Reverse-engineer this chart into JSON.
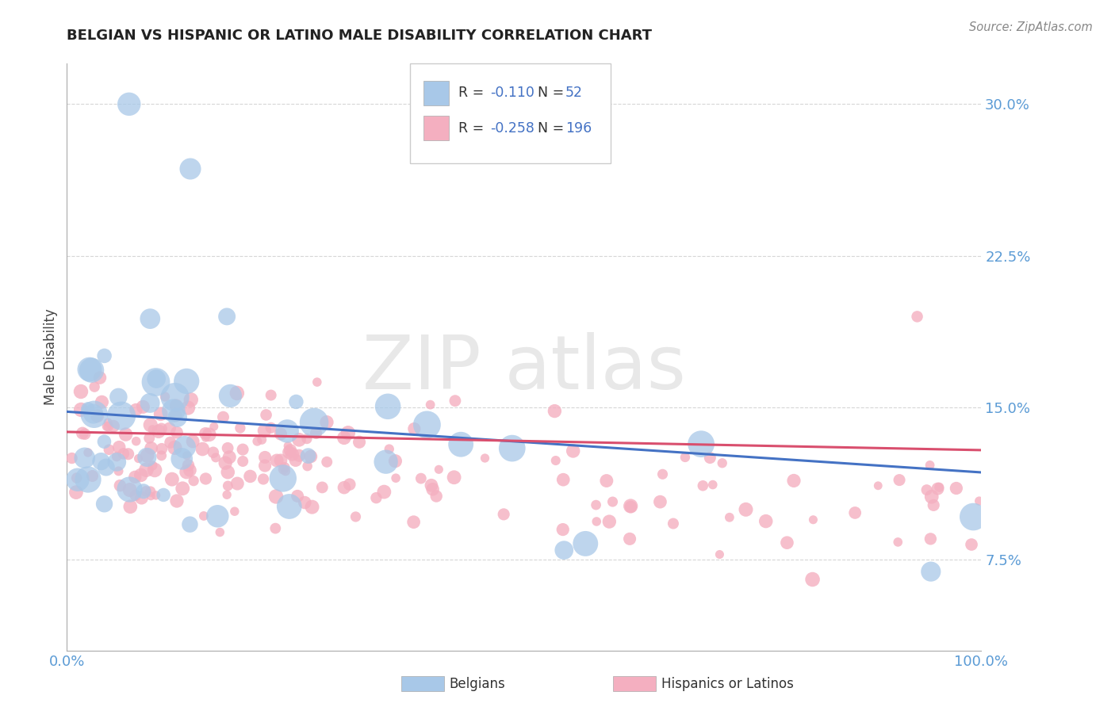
{
  "title": "BELGIAN VS HISPANIC OR LATINO MALE DISABILITY CORRELATION CHART",
  "source": "Source: ZipAtlas.com",
  "ylabel": "Male Disability",
  "xlim": [
    0.0,
    1.0
  ],
  "ylim": [
    0.03,
    0.32
  ],
  "yticks": [
    0.075,
    0.15,
    0.225,
    0.3
  ],
  "ytick_labels": [
    "7.5%",
    "15.0%",
    "22.5%",
    "30.0%"
  ],
  "xticks": [
    0.0,
    1.0
  ],
  "xtick_labels": [
    "0.0%",
    "100.0%"
  ],
  "belgian_R": -0.11,
  "belgian_N": 52,
  "hispanic_R": -0.258,
  "hispanic_N": 196,
  "belgian_color": "#a8c8e8",
  "hispanic_color": "#f4afc0",
  "belgian_line_color": "#4472c4",
  "hispanic_line_color": "#d94f6e",
  "background_color": "#ffffff",
  "grid_color": "#cccccc",
  "legend_label_belgian": "Belgians",
  "legend_label_hispanic": "Hispanics or Latinos",
  "watermark_color": "#e0e0e0"
}
